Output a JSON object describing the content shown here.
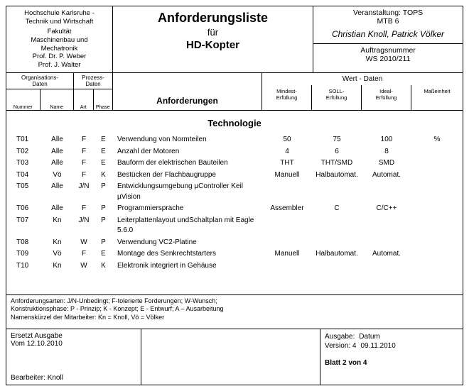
{
  "header": {
    "inst1": "Hochschule Karlsruhe -",
    "inst2": "Technik und Wirtschaft",
    "fac1": "Fakultät",
    "fac2": "Maschinenbau und",
    "fac3": "Mechatronik",
    "prof1": "Prof. Dr. P. Weber",
    "prof2": "Prof. J. Walter",
    "title1": "Anforderungsliste",
    "title2": "für",
    "title3": "HD-Kopter",
    "event_lbl": "Veranstaltung: TOPS",
    "event_sub": "MTB 6",
    "names": "Christian Knoll, Patrick Völker",
    "order_lbl": "Auftragsnummer",
    "order_val": "WS 2010/211"
  },
  "colhdr": {
    "org": "Organisations-\nDaten",
    "org_num": "Nummer",
    "org_name": "Name",
    "proz": "Prozess-\nDaten",
    "proz_art": "Art",
    "proz_phase": "Phase",
    "anf": "Anforderungen",
    "wert": "Wert - Daten",
    "w1": "Mindest-\nErfüllung",
    "w2": "SOLL-\nErfüllung",
    "w3": "Ideal-\nErfüllung",
    "w4": "Maßeinheit"
  },
  "section_title": "Technologie",
  "rows": [
    {
      "num": "T01",
      "name": "Alle",
      "art": "F",
      "phase": "E",
      "desc": "Verwendung von Normteilen",
      "v1": "50",
      "v2": "75",
      "v3": "100",
      "v4": "%"
    },
    {
      "num": "T02",
      "name": "Alle",
      "art": "F",
      "phase": "E",
      "desc": "Anzahl der Motoren",
      "v1": "4",
      "v2": "6",
      "v3": "8",
      "v4": ""
    },
    {
      "num": "T03",
      "name": "Alle",
      "art": "F",
      "phase": "E",
      "desc": "Bauform der elektrischen Bauteilen",
      "v1": "THT",
      "v2": "THT/SMD",
      "v3": "SMD",
      "v4": ""
    },
    {
      "num": "T04",
      "name": "Vö",
      "art": "F",
      "phase": "K",
      "desc": "Bestücken der Flachbaugruppe",
      "v1": "Manuell",
      "v2": "Halbautomat.",
      "v3": "Automat.",
      "v4": ""
    },
    {
      "num": "T05",
      "name": "Alle",
      "art": "J/N",
      "phase": "P",
      "desc": "Entwicklungsumgebung µController Keil µVision",
      "v1": "",
      "v2": "",
      "v3": "",
      "v4": ""
    },
    {
      "num": "T06",
      "name": "Alle",
      "art": "F",
      "phase": "P",
      "desc": "Programmiersprache",
      "v1": "Assembler",
      "v2": "C",
      "v3": "C/C++",
      "v4": ""
    },
    {
      "num": "T07",
      "name": "Kn",
      "art": "J/N",
      "phase": "P",
      "desc": "Leiterplattenlayout undSchaltplan mit Eagle 5.6.0",
      "v1": "",
      "v2": "",
      "v3": "",
      "v4": ""
    },
    {
      "num": "T08",
      "name": "Kn",
      "art": "W",
      "phase": "P",
      "desc": "Verwendung VC2-Platine",
      "v1": "",
      "v2": "",
      "v3": "",
      "v4": ""
    },
    {
      "num": "T09",
      "name": "Vö",
      "art": "F",
      "phase": "E",
      "desc": "Montage des Senkrechtstarters",
      "v1": "Manuell",
      "v2": "Halbautomat.",
      "v3": "Automat.",
      "v4": ""
    },
    {
      "num": "T10",
      "name": "Kn",
      "art": "W",
      "phase": "K",
      "desc": "Elektronik integriert in Gehäuse",
      "v1": "",
      "v2": "",
      "v3": "",
      "v4": ""
    }
  ],
  "legend": {
    "l1": "Anforderungsarten: J/N-Unbedingt; F-tolerierte Forderungen; W-Wunsch;",
    "l2": "Konstruktionsphase: P - Prinzip; K - Konzept; E - Entwurf; A – Ausarbeitung",
    "l3": "Namenskürzel der Mitarbeiter: Kn = Knoll, Vö = Völker"
  },
  "footer": {
    "ersetzt1": "Ersetzt Ausgabe",
    "ersetzt2": "Vom 12.10.2010",
    "bearb": "Bearbeiter: Knoll",
    "ausgabe_lbl": "Ausgabe:",
    "ausgabe_val": "Datum",
    "version_lbl": "Version: 4",
    "version_val": "09.11.2010",
    "blatt": "Blatt  2  von  4"
  }
}
